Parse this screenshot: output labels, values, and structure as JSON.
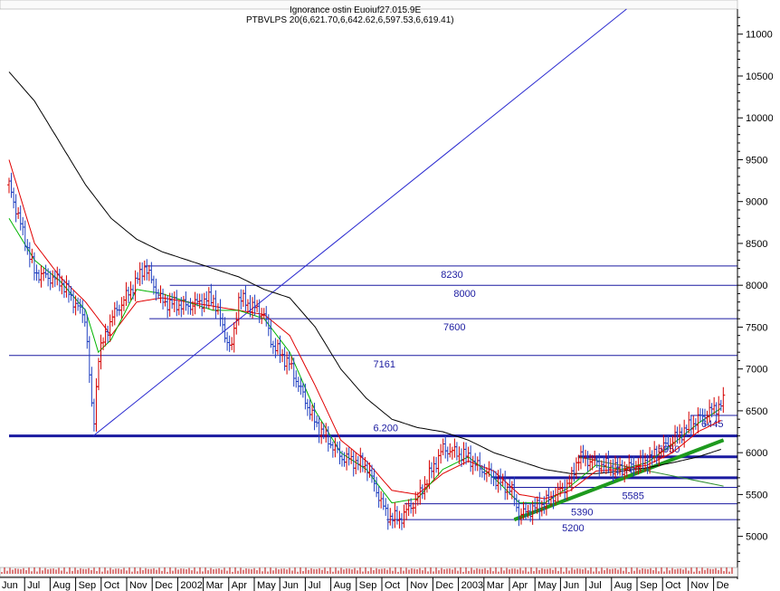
{
  "header": {
    "line1": "Ignorance ostin Euoiuf27.015.9E",
    "line2": "PTBVLPS 20(6,621.70,6,642.62,6,597.53,6,619.41)"
  },
  "colors": {
    "price_up": "#d40000",
    "price_down": "#1f3fc0",
    "ma_fast": "#00b400",
    "ma_mid": "#e00000",
    "ma_slow": "#000000",
    "levels": "#1a1aa0",
    "trend_green": "#1e9a1e",
    "trend_blue": "#2a2ad0",
    "volume": "#c00000"
  },
  "chart_data": {
    "type": "line",
    "ylim": [
      4650,
      11300
    ],
    "y_ticks": [
      5000,
      5500,
      6000,
      6500,
      7000,
      7500,
      8000,
      8500,
      9000,
      9500,
      10000,
      10500,
      11000
    ],
    "x_tick_labels": [
      "Jun",
      "Jul",
      "Aug",
      "Sep",
      "Oct",
      "Nov",
      "Dec",
      "2002",
      "Mar",
      "Apr",
      "May",
      "Jun",
      "Jul",
      "Aug",
      "Sep",
      "Oct",
      "Nov",
      "Dec",
      "2003",
      "Mar",
      "Apr",
      "May",
      "Jun",
      "Jul",
      "Aug",
      "Sep",
      "Oct",
      "Nov",
      "De"
    ],
    "price_series": [
      [
        0,
        9200
      ],
      [
        1,
        8150
      ],
      [
        2,
        8050
      ],
      [
        3,
        7600
      ],
      [
        3.3,
        6250
      ],
      [
        3.5,
        7150
      ],
      [
        4,
        7600
      ],
      [
        5,
        8050
      ],
      [
        5.3,
        8230
      ],
      [
        6,
        7800
      ],
      [
        7,
        7750
      ],
      [
        8,
        7850
      ],
      [
        8.7,
        7200
      ],
      [
        9,
        7850
      ],
      [
        10,
        7650
      ],
      [
        10.3,
        7300
      ],
      [
        11,
        7050
      ],
      [
        12,
        6350
      ],
      [
        13,
        5950
      ],
      [
        14,
        5850
      ],
      [
        14.8,
        5250
      ],
      [
        15.3,
        5200
      ],
      [
        16,
        5450
      ],
      [
        17,
        6050
      ],
      [
        18,
        5950
      ],
      [
        18.3,
        5850
      ],
      [
        19,
        5700
      ],
      [
        19.7,
        5550
      ],
      [
        20,
        5250
      ],
      [
        21,
        5400
      ],
      [
        22,
        5650
      ],
      [
        22.3,
        5950
      ],
      [
        23,
        5880
      ],
      [
        24,
        5800
      ],
      [
        25,
        5900
      ],
      [
        26,
        6150
      ],
      [
        27,
        6400
      ],
      [
        28,
        6600
      ]
    ],
    "ma_fast_series": [
      [
        0,
        8800
      ],
      [
        1,
        8300
      ],
      [
        2,
        8050
      ],
      [
        3,
        7700
      ],
      [
        3.5,
        7200
      ],
      [
        4,
        7350
      ],
      [
        5,
        7950
      ],
      [
        6,
        7900
      ],
      [
        7,
        7800
      ],
      [
        8,
        7700
      ],
      [
        9,
        7700
      ],
      [
        10,
        7600
      ],
      [
        11,
        7200
      ],
      [
        12,
        6500
      ],
      [
        13,
        6000
      ],
      [
        14,
        5800
      ],
      [
        15,
        5400
      ],
      [
        16,
        5450
      ],
      [
        17,
        5800
      ],
      [
        18,
        5950
      ],
      [
        19,
        5700
      ],
      [
        20,
        5400
      ],
      [
        21,
        5400
      ],
      [
        22,
        5600
      ],
      [
        23,
        5850
      ],
      [
        24,
        5800
      ],
      [
        25,
        5880
      ],
      [
        26,
        6100
      ],
      [
        27,
        6350
      ],
      [
        28,
        6550
      ]
    ],
    "ma_mid_series": [
      [
        0,
        9500
      ],
      [
        1,
        8500
      ],
      [
        2,
        8100
      ],
      [
        3,
        7800
      ],
      [
        4,
        7400
      ],
      [
        5,
        7800
      ],
      [
        6,
        7850
      ],
      [
        7,
        7800
      ],
      [
        8,
        7750
      ],
      [
        9,
        7700
      ],
      [
        10,
        7650
      ],
      [
        11,
        7400
      ],
      [
        12,
        6800
      ],
      [
        13,
        6150
      ],
      [
        14,
        5900
      ],
      [
        15,
        5550
      ],
      [
        16,
        5500
      ],
      [
        17,
        5750
      ],
      [
        18,
        5900
      ],
      [
        19,
        5780
      ],
      [
        20,
        5500
      ],
      [
        21,
        5450
      ],
      [
        22,
        5550
      ],
      [
        23,
        5780
      ],
      [
        24,
        5800
      ],
      [
        25,
        5850
      ],
      [
        26,
        6000
      ],
      [
        27,
        6250
      ],
      [
        28,
        6400
      ]
    ],
    "ma_slow_series": [
      [
        0,
        10550
      ],
      [
        1,
        10200
      ],
      [
        2,
        9700
      ],
      [
        3,
        9200
      ],
      [
        4,
        8800
      ],
      [
        5,
        8550
      ],
      [
        6,
        8400
      ],
      [
        7,
        8300
      ],
      [
        8,
        8200
      ],
      [
        9,
        8100
      ],
      [
        10,
        7950
      ],
      [
        11,
        7850
      ],
      [
        12,
        7500
      ],
      [
        13,
        7000
      ],
      [
        14,
        6650
      ],
      [
        15,
        6400
      ],
      [
        16,
        6300
      ],
      [
        17,
        6250
      ],
      [
        18,
        6150
      ],
      [
        19,
        6000
      ],
      [
        20,
        5900
      ],
      [
        21,
        5800
      ],
      [
        22,
        5750
      ],
      [
        23,
        5750
      ],
      [
        24,
        5780
      ],
      [
        25,
        5820
      ],
      [
        26,
        5880
      ],
      [
        27,
        5950
      ],
      [
        28,
        6050
      ]
    ],
    "levels": [
      {
        "label": "8230",
        "value": 8230,
        "x_start": 5.3,
        "thick": false
      },
      {
        "label": "8000",
        "value": 8000,
        "x_start": 6.3,
        "thick": false
      },
      {
        "label": "7600",
        "value": 7600,
        "x_start": 5.5,
        "thick": false
      },
      {
        "label": "7161",
        "value": 7161,
        "x_start": 0,
        "thick": false
      },
      {
        "label": "6.200",
        "value": 6200,
        "x_start": 0,
        "thick": true
      },
      {
        "label": "5950",
        "value": 5950,
        "x_start": 22.3,
        "thick": true
      },
      {
        "label": "5.700",
        "value": 5700,
        "x_start": 19,
        "thick": true
      },
      {
        "label": "5585",
        "value": 5585,
        "x_start": 19.5,
        "thick": false
      },
      {
        "label": "5390",
        "value": 5390,
        "x_start": 15.5,
        "thick": false
      },
      {
        "label": "5200",
        "value": 5200,
        "x_start": 14.8,
        "thick": false
      },
      {
        "label": "6445",
        "value": 6445,
        "x_start": 26.7,
        "thick": false
      }
    ],
    "trendlines": [
      {
        "name": "blue-rising",
        "from": [
          3.3,
          6200
        ],
        "to": [
          24.2,
          11300
        ]
      },
      {
        "name": "green-support",
        "from": [
          19.8,
          5200
        ],
        "to": [
          28,
          6150
        ]
      },
      {
        "name": "olive-fan",
        "from": [
          22.3,
          5950
        ],
        "to": [
          28,
          5600
        ]
      }
    ]
  }
}
